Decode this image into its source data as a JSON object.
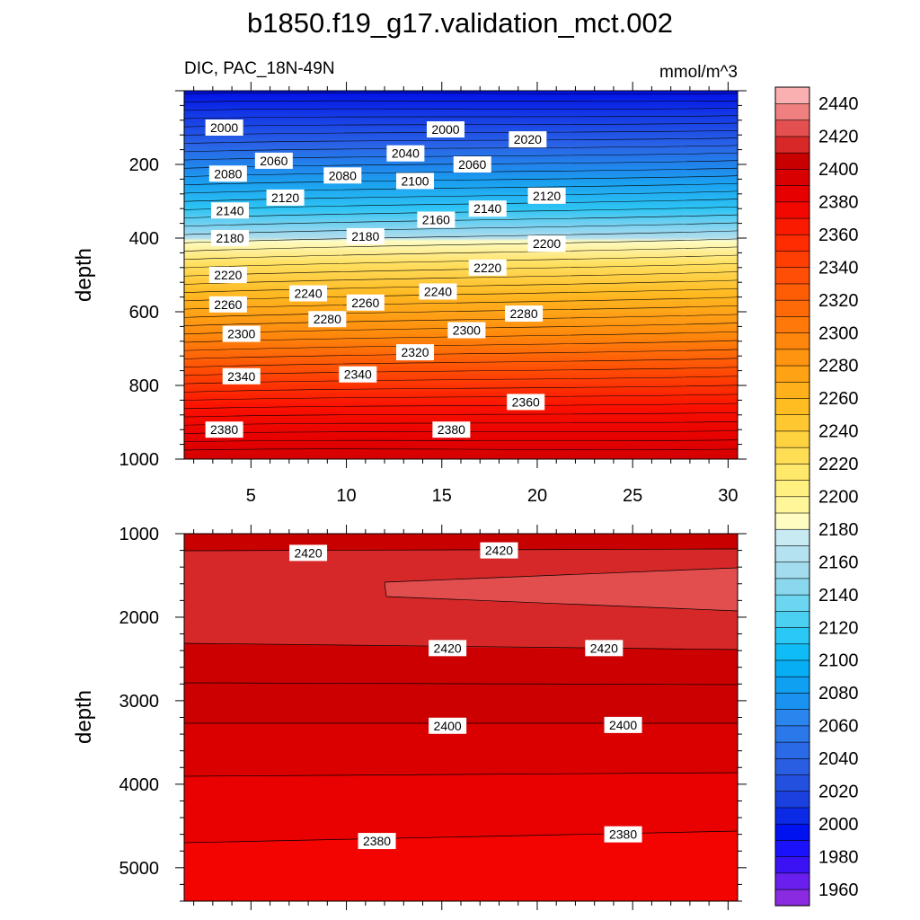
{
  "chart_data": {
    "type": "contour",
    "title": "b1850.f19_g17.validation_mct.002",
    "variable_label": "DIC, PAC_18N-49N",
    "units": "mmol/m^3",
    "xticks": [
      5,
      10,
      15,
      20,
      25,
      30
    ],
    "xlim": [
      1.5,
      30.5
    ],
    "colorbar": {
      "levels": [
        1960,
        1970,
        1980,
        1990,
        2000,
        2010,
        2020,
        2030,
        2040,
        2050,
        2060,
        2070,
        2080,
        2090,
        2100,
        2110,
        2120,
        2130,
        2140,
        2150,
        2160,
        2170,
        2180,
        2190,
        2200,
        2210,
        2220,
        2230,
        2240,
        2250,
        2260,
        2270,
        2280,
        2290,
        2300,
        2310,
        2320,
        2330,
        2340,
        2350,
        2360,
        2370,
        2380,
        2390,
        2400,
        2410,
        2420,
        2430,
        2440,
        2450
      ],
      "labels": [
        1960,
        1980,
        2000,
        2020,
        2040,
        2060,
        2080,
        2100,
        2120,
        2140,
        2160,
        2180,
        2200,
        2220,
        2240,
        2260,
        2280,
        2300,
        2320,
        2340,
        2360,
        2380,
        2400,
        2420,
        2440
      ],
      "colors": [
        "#8a2be2",
        "#6a1fee",
        "#3a12f4",
        "#1a12fa",
        "#0012f0",
        "#0a2ae6",
        "#1a40e0",
        "#2450e0",
        "#2a5ee2",
        "#2a6ae6",
        "#2a78ea",
        "#2a86ee",
        "#1a92f0",
        "#10a0f2",
        "#08aef4",
        "#10bcf5",
        "#2ac8f5",
        "#4cd0f2",
        "#6cd6f0",
        "#8ad8ee",
        "#a2dcee",
        "#b4e2f0",
        "#c8eaf2",
        "#fefcc0",
        "#fff69a",
        "#fff080",
        "#ffe86a",
        "#ffde55",
        "#ffd340",
        "#ffc830",
        "#ffbd22",
        "#ffb01a",
        "#ffa214",
        "#ff9410",
        "#ff860c",
        "#ff780a",
        "#ff6a08",
        "#ff5c06",
        "#ff4e05",
        "#ff3e04",
        "#ff2c02",
        "#fa1a00",
        "#f20800",
        "#e60000",
        "#d80000",
        "#c80000",
        "#d82828",
        "#e45050",
        "#f08080",
        "#fab0b0"
      ]
    },
    "panels": [
      {
        "name": "upper-0-1000m",
        "ylabel": "depth",
        "ylim": [
          1000,
          0
        ],
        "yticks": [
          200,
          400,
          600,
          800,
          1000
        ],
        "contour_labels": [
          {
            "x": 3.6,
            "y": 100,
            "v": "2000"
          },
          {
            "x": 15.2,
            "y": 105,
            "v": "2000"
          },
          {
            "x": 19.5,
            "y": 132,
            "v": "2020"
          },
          {
            "x": 13.1,
            "y": 170,
            "v": "2040"
          },
          {
            "x": 6.2,
            "y": 190,
            "v": "2060"
          },
          {
            "x": 16.6,
            "y": 200,
            "v": "2060"
          },
          {
            "x": 3.8,
            "y": 225,
            "v": "2080"
          },
          {
            "x": 9.8,
            "y": 230,
            "v": "2080"
          },
          {
            "x": 13.6,
            "y": 245,
            "v": "2100"
          },
          {
            "x": 6.8,
            "y": 290,
            "v": "2120"
          },
          {
            "x": 20.5,
            "y": 285,
            "v": "2120"
          },
          {
            "x": 3.9,
            "y": 325,
            "v": "2140"
          },
          {
            "x": 17.4,
            "y": 320,
            "v": "2140"
          },
          {
            "x": 14.7,
            "y": 350,
            "v": "2160"
          },
          {
            "x": 3.9,
            "y": 400,
            "v": "2180"
          },
          {
            "x": 11.0,
            "y": 395,
            "v": "2180"
          },
          {
            "x": 20.5,
            "y": 415,
            "v": "2200"
          },
          {
            "x": 3.8,
            "y": 500,
            "v": "2220"
          },
          {
            "x": 17.4,
            "y": 480,
            "v": "2220"
          },
          {
            "x": 14.8,
            "y": 545,
            "v": "2240"
          },
          {
            "x": 8.0,
            "y": 550,
            "v": "2240"
          },
          {
            "x": 3.8,
            "y": 580,
            "v": "2260"
          },
          {
            "x": 11.0,
            "y": 575,
            "v": "2260"
          },
          {
            "x": 9.0,
            "y": 620,
            "v": "2280"
          },
          {
            "x": 19.3,
            "y": 605,
            "v": "2280"
          },
          {
            "x": 4.5,
            "y": 660,
            "v": "2300"
          },
          {
            "x": 16.3,
            "y": 650,
            "v": "2300"
          },
          {
            "x": 13.6,
            "y": 710,
            "v": "2320"
          },
          {
            "x": 4.5,
            "y": 775,
            "v": "2340"
          },
          {
            "x": 10.6,
            "y": 770,
            "v": "2340"
          },
          {
            "x": 19.4,
            "y": 845,
            "v": "2360"
          },
          {
            "x": 3.6,
            "y": 920,
            "v": "2380"
          },
          {
            "x": 15.5,
            "y": 920,
            "v": "2380"
          }
        ]
      },
      {
        "name": "lower-1000-5400m",
        "ylabel": "depth",
        "ylim": [
          5400,
          1000
        ],
        "yticks": [
          1000,
          2000,
          3000,
          4000,
          5000
        ],
        "contour_labels": [
          {
            "x": 8.0,
            "y": 1230,
            "v": "2420"
          },
          {
            "x": 18.0,
            "y": 1200,
            "v": "2420"
          },
          {
            "x": 15.3,
            "y": 2370,
            "v": "2420"
          },
          {
            "x": 23.5,
            "y": 2370,
            "v": "2420"
          },
          {
            "x": 15.3,
            "y": 3300,
            "v": "2400"
          },
          {
            "x": 24.5,
            "y": 3290,
            "v": "2400"
          },
          {
            "x": 11.6,
            "y": 4680,
            "v": "2380"
          },
          {
            "x": 24.5,
            "y": 4600,
            "v": "2380"
          }
        ]
      }
    ]
  }
}
